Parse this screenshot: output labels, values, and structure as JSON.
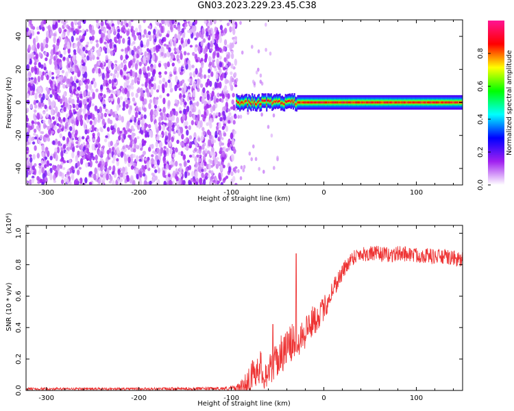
{
  "title": "GN03.2023.229.23.45.C38",
  "chart_data": [
    {
      "type": "heatmap",
      "xlabel": "Height of straight line (km)",
      "ylabel": "Frequency (Hz)",
      "xlim": [
        -322,
        150
      ],
      "ylim": [
        -50,
        50
      ],
      "xticks": [
        -300,
        -200,
        -100,
        0,
        100
      ],
      "yticks": [
        -40,
        -20,
        0,
        20,
        40
      ],
      "colorbar": {
        "label": "Normalized spectral amplitude",
        "range": [
          0,
          1
        ],
        "ticks": [
          0.0,
          0.2,
          0.4,
          0.6,
          0.8
        ],
        "colormap": [
          "#ffffff",
          "#a020f0",
          "#0000ff",
          "#00ffff",
          "#00ff00",
          "#ffff00",
          "#ff0000",
          "#ff1493"
        ]
      },
      "regions": [
        {
          "x_range": [
            -322,
            -95
          ],
          "freq_range": [
            -50,
            50
          ],
          "amplitude": "0.0-0.2 broadband noise"
        },
        {
          "x_range": [
            -95,
            150
          ],
          "center_freq_hz": 0,
          "bandwidth_hz": 4,
          "peak_amplitude": 0.9
        }
      ]
    },
    {
      "type": "line",
      "xlabel": "Height of straight line (km)",
      "ylabel": "SNR (10 * v/v)",
      "y_multiplier": "(x10⁴)",
      "xlim": [
        -322,
        150
      ],
      "ylim": [
        0,
        1.05
      ],
      "xticks": [
        -300,
        -200,
        -100,
        0,
        100
      ],
      "yticks": [
        0.0,
        0.2,
        0.4,
        0.6,
        0.8,
        1.0
      ],
      "series": [
        {
          "color": "#ee3333",
          "x": [
            -322,
            -200,
            -110,
            -95,
            -88,
            -80,
            -75,
            -70,
            -65,
            -60,
            -55,
            -50,
            -45,
            -40,
            -35,
            -30,
            -25,
            -20,
            -15,
            -10,
            -5,
            0,
            5,
            10,
            15,
            20,
            25,
            30,
            35,
            40,
            50,
            60,
            70,
            80,
            90,
            100,
            110,
            120,
            130,
            140,
            150
          ],
          "y": [
            0.01,
            0.01,
            0.012,
            0.015,
            0.03,
            0.07,
            0.12,
            0.16,
            0.1,
            0.12,
            0.16,
            0.2,
            0.24,
            0.27,
            0.3,
            0.33,
            0.35,
            0.38,
            0.42,
            0.45,
            0.48,
            0.52,
            0.58,
            0.65,
            0.7,
            0.75,
            0.8,
            0.84,
            0.86,
            0.87,
            0.87,
            0.87,
            0.86,
            0.87,
            0.87,
            0.86,
            0.86,
            0.85,
            0.85,
            0.84,
            0.83
          ],
          "noise_amplitude": [
            0.008,
            0.008,
            0.01,
            0.02,
            0.04,
            0.1,
            0.1,
            0.12,
            0.1,
            0.1,
            0.1,
            0.12,
            0.12,
            0.12,
            0.12,
            0.12,
            0.12,
            0.12,
            0.1,
            0.1,
            0.08,
            0.08,
            0.08,
            0.07,
            0.06,
            0.06,
            0.05,
            0.05,
            0.05,
            0.05,
            0.05,
            0.05,
            0.05,
            0.05,
            0.05,
            0.05,
            0.05,
            0.05,
            0.05,
            0.05,
            0.05
          ]
        }
      ]
    }
  ]
}
